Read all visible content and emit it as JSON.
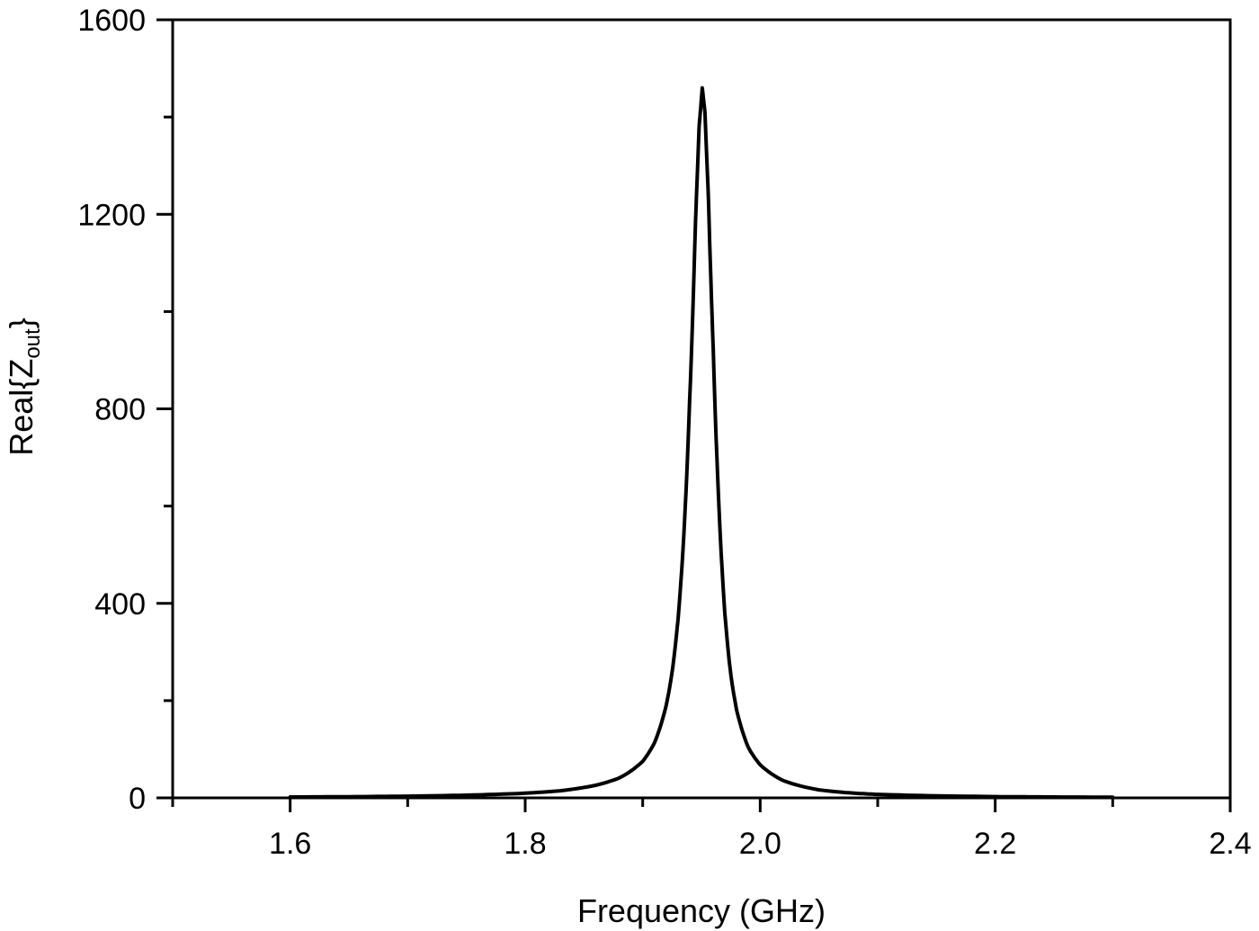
{
  "chart_data": {
    "type": "line",
    "title": "",
    "xlabel": "Frequency (GHz)",
    "ylabel_parts": {
      "prefix": "Real{Z",
      "subscript": "out",
      "suffix": "}"
    },
    "ylabel": "Real{Z_out}",
    "xlim": [
      1.5,
      2.4
    ],
    "ylim": [
      0,
      1600
    ],
    "x_ticks": [
      1.6,
      1.8,
      2.0,
      2.2,
      2.4
    ],
    "x_tick_labels": [
      "1.6",
      "1.8",
      "2.0",
      "2.2",
      "2.4"
    ],
    "x_minor_ticks": [
      1.5,
      1.7,
      1.9,
      2.1,
      2.3
    ],
    "y_ticks": [
      0,
      400,
      800,
      1200,
      1600
    ],
    "y_tick_labels": [
      "0",
      "400",
      "800",
      "1200",
      "1600"
    ],
    "y_minor_ticks": [
      200,
      600,
      1000,
      1400
    ],
    "grid": false,
    "legend": null,
    "line_color": "#000000",
    "series": [
      {
        "name": "Real{Z_out}",
        "peak": {
          "x": 1.9507,
          "y": 1460
        },
        "x": [
          1.6,
          1.65,
          1.7,
          1.75,
          1.8,
          1.83,
          1.86,
          1.88,
          1.9,
          1.91,
          1.92,
          1.925,
          1.93,
          1.935,
          1.94,
          1.945,
          1.948,
          1.9507,
          1.953,
          1.956,
          1.96,
          1.965,
          1.97,
          1.975,
          1.98,
          1.99,
          2.0,
          2.02,
          2.05,
          2.08,
          2.1,
          2.15,
          2.2,
          2.25,
          2.3
        ],
        "values": [
          1.8,
          2.4,
          3.5,
          5.5,
          9.6,
          14.6,
          25.9,
          40.8,
          75.1,
          113,
          190,
          258,
          365,
          540,
          819,
          1190,
          1380,
          1460,
          1410,
          1230,
          924,
          593,
          377,
          253,
          180,
          103,
          68.0,
          35.1,
          16.5,
          9.6,
          7.2,
          4.1,
          2.6,
          1.8,
          1.4
        ]
      }
    ]
  }
}
